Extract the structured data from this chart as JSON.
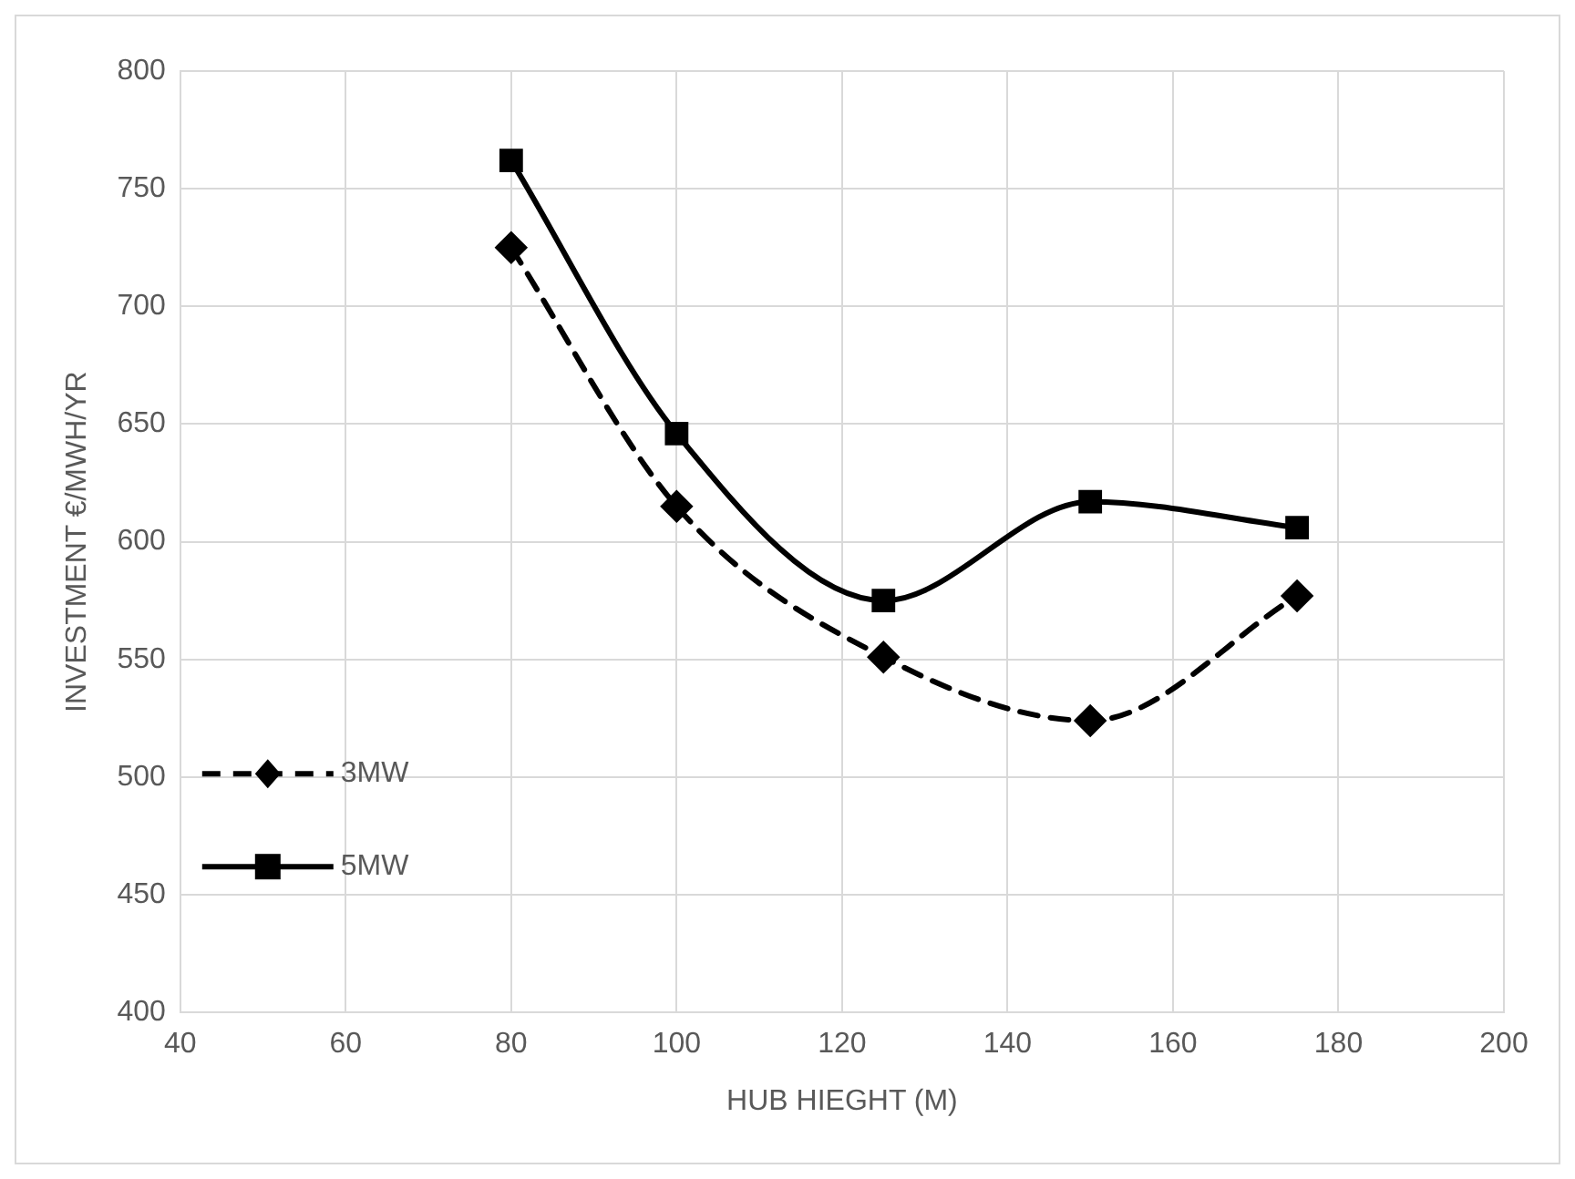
{
  "chart_data": {
    "type": "line",
    "xlabel": "HUB HIEGHT (M)",
    "ylabel": "INVESTMENT €/MWH/YR",
    "x": [
      80,
      100,
      125,
      150,
      175
    ],
    "series": [
      {
        "name": "3MW",
        "color": "#000000",
        "values": [
          725,
          615,
          551,
          524,
          577
        ],
        "marker": "diamond",
        "line_style": "dashed"
      },
      {
        "name": "5MW",
        "color": "#000000",
        "values": [
          762,
          646,
          575,
          617,
          606
        ],
        "marker": "square",
        "line_style": "solid"
      }
    ],
    "xlim": [
      40,
      200
    ],
    "xticks": [
      40,
      60,
      80,
      100,
      120,
      140,
      160,
      180,
      200
    ],
    "ylim": [
      400,
      800
    ],
    "yticks": [
      400,
      450,
      500,
      550,
      600,
      650,
      700,
      750,
      800
    ],
    "grid": true,
    "legend": "bottom left"
  }
}
